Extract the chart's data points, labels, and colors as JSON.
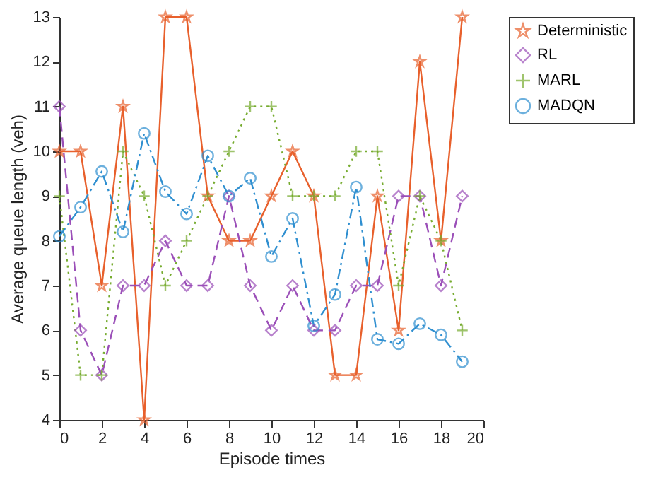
{
  "chart_data": {
    "type": "line",
    "xlabel": "Episode times",
    "ylabel": "Average queue length (veh)",
    "x": [
      0,
      1,
      2,
      3,
      4,
      5,
      6,
      7,
      8,
      9,
      10,
      11,
      12,
      13,
      14,
      15,
      16,
      17,
      18,
      19
    ],
    "series": [
      {
        "name": "Deterministic",
        "color": "#e8602c",
        "marker": "star",
        "line_style": "solid",
        "values": [
          10,
          10,
          7,
          11,
          4,
          13,
          13,
          9,
          8,
          8,
          9,
          10,
          9,
          5,
          5,
          9,
          6,
          12,
          8,
          13
        ]
      },
      {
        "name": "RL",
        "color": "#9b4fb8",
        "marker": "diamond",
        "line_style": "dashed",
        "values": [
          11,
          6,
          5,
          7,
          7,
          8,
          7,
          7,
          9,
          7,
          6,
          7,
          6,
          6,
          7,
          7,
          9,
          9,
          7,
          9
        ]
      },
      {
        "name": "MARL",
        "color": "#77ac30",
        "marker": "cross",
        "line_style": "dotted",
        "values": [
          9,
          5,
          5,
          10,
          9,
          7,
          8,
          9,
          10,
          11,
          11,
          9,
          9,
          9,
          10,
          10,
          7,
          9,
          8,
          6
        ]
      },
      {
        "name": "MADQN",
        "color": "#2f8fd0",
        "marker": "circle",
        "line_style": "dashdot",
        "values": [
          8.1,
          8.75,
          9.55,
          8.2,
          10.4,
          9.1,
          8.6,
          9.9,
          9,
          9.4,
          7.65,
          8.5,
          6.1,
          6.8,
          9.2,
          5.8,
          5.7,
          6.15,
          5.9,
          5.3
        ]
      }
    ],
    "xlim": [
      0,
      20
    ],
    "xticks": [
      0,
      2,
      4,
      6,
      8,
      10,
      12,
      14,
      16,
      18,
      20
    ],
    "ylim": [
      4,
      13
    ],
    "yticks": [
      4,
      5,
      6,
      7,
      8,
      9,
      10,
      11,
      12,
      13
    ],
    "grid": false,
    "legend": "top right"
  }
}
